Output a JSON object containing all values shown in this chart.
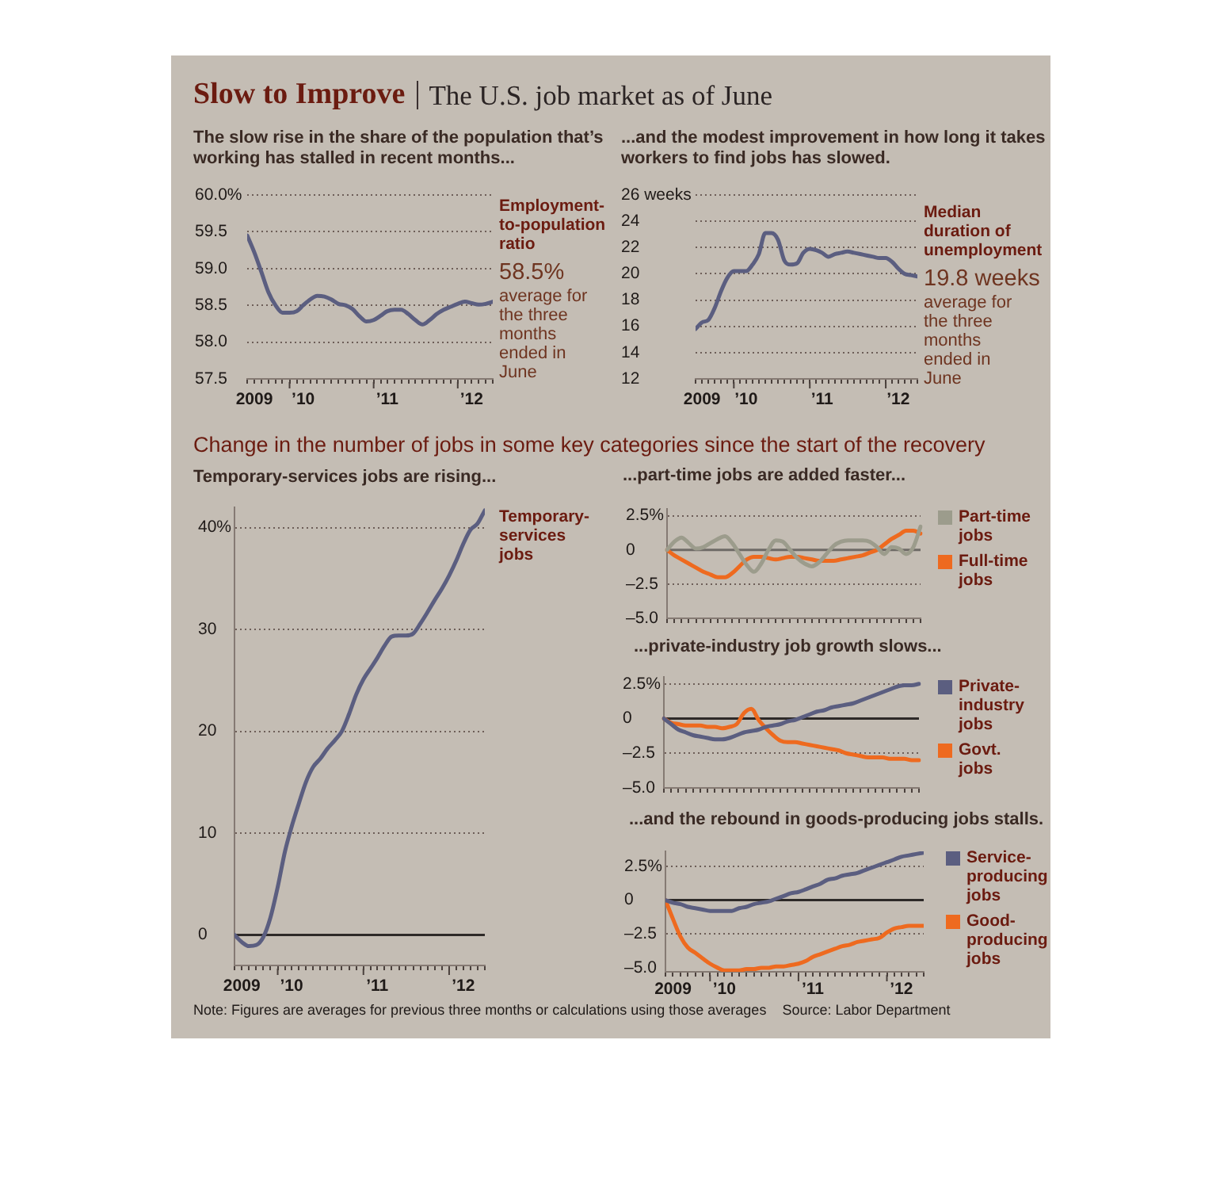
{
  "chart_data": [
    {
      "type": "other",
      "title": "Slow to Improve",
      "subtitle": "The U.S. job market as of June"
    },
    {
      "type": "line",
      "title": "The slow rise in the share of the population that’s working has stalled in recent months...",
      "x": [
        "2009-07",
        "2009-08",
        "2009-09",
        "2009-10",
        "2009-11",
        "2009-12",
        "2010-01",
        "2010-02",
        "2010-03",
        "2010-04",
        "2010-05",
        "2010-06",
        "2010-07",
        "2010-08",
        "2010-09",
        "2010-10",
        "2010-11",
        "2010-12",
        "2011-01",
        "2011-02",
        "2011-03",
        "2011-04",
        "2011-05",
        "2011-06",
        "2011-07",
        "2011-08",
        "2011-09",
        "2011-10",
        "2011-11",
        "2011-12",
        "2012-01",
        "2012-02",
        "2012-03",
        "2012-04",
        "2012-05",
        "2012-06"
      ],
      "series": [
        {
          "name": "Employment-to-population ratio",
          "color": "#5b5e80",
          "values": [
            59.45,
            59.22,
            58.95,
            58.68,
            58.5,
            58.4,
            58.4,
            58.42,
            58.5,
            58.58,
            58.63,
            58.62,
            58.58,
            58.52,
            58.5,
            58.45,
            58.35,
            58.28,
            58.3,
            58.36,
            58.42,
            58.44,
            58.44,
            58.38,
            58.3,
            58.24,
            58.3,
            58.38,
            58.44,
            58.48,
            58.52,
            58.55,
            58.53,
            58.51,
            58.52,
            58.55
          ]
        }
      ],
      "xlim": [
        "2009-07",
        "2012-06"
      ],
      "xticks": [
        {
          "value": "2009-07",
          "label": null
        },
        {
          "value": "2009-08",
          "label": "2009"
        },
        {
          "value": "2009-09",
          "label": null
        },
        {
          "value": "2009-10",
          "label": null
        },
        {
          "value": "2009-11",
          "label": null
        },
        {
          "value": "2009-12",
          "label": null
        },
        {
          "value": "2010-01",
          "label": null
        },
        {
          "value": "2010-02",
          "label": null
        },
        {
          "value": "2010-03",
          "label": "’10"
        },
        {
          "value": "2010-04",
          "label": null
        },
        {
          "value": "2010-05",
          "label": null
        },
        {
          "value": "2010-06",
          "label": null
        },
        {
          "value": "2010-07",
          "label": null
        },
        {
          "value": "2010-08",
          "label": null
        },
        {
          "value": "2010-09",
          "label": null
        },
        {
          "value": "2010-10",
          "label": null
        },
        {
          "value": "2010-11",
          "label": null
        },
        {
          "value": "2010-12",
          "label": null
        },
        {
          "value": "2011-01",
          "label": null
        },
        {
          "value": "2011-02",
          "label": null
        },
        {
          "value": "2011-03",
          "label": "’11"
        },
        {
          "value": "2011-04",
          "label": null
        },
        {
          "value": "2011-05",
          "label": null
        },
        {
          "value": "2011-06",
          "label": null
        },
        {
          "value": "2011-07",
          "label": null
        },
        {
          "value": "2011-08",
          "label": null
        },
        {
          "value": "2011-09",
          "label": null
        },
        {
          "value": "2011-10",
          "label": null
        },
        {
          "value": "2011-11",
          "label": null
        },
        {
          "value": "2011-12",
          "label": null
        },
        {
          "value": "2012-01",
          "label": null
        },
        {
          "value": "2012-02",
          "label": null
        },
        {
          "value": "2012-03",
          "label": "’12"
        },
        {
          "value": "2012-04",
          "label": null
        },
        {
          "value": "2012-05",
          "label": null
        },
        {
          "value": "2012-06",
          "label": null
        }
      ],
      "ylim": [
        57.5,
        60
      ],
      "yticks": [
        57.5,
        {
          "value": 58,
          "label": "58.0"
        },
        58.5,
        {
          "value": 59,
          "label": "59.0"
        },
        59.5,
        {
          "value": 60,
          "label": "60.0%"
        }
      ],
      "grid": "y",
      "legend": false,
      "annotations": [
        "58.5%",
        "average for the three months ended in June"
      ]
    },
    {
      "type": "line",
      "title": "...and the modest improvement in how long it takes workers to find jobs has slowed.",
      "x": [
        "2009-07",
        "2009-08",
        "2009-09",
        "2009-10",
        "2009-11",
        "2009-12",
        "2010-01",
        "2010-02",
        "2010-03",
        "2010-04",
        "2010-05",
        "2010-06",
        "2010-07",
        "2010-08",
        "2010-09",
        "2010-10",
        "2010-11",
        "2010-12",
        "2011-01",
        "2011-02",
        "2011-03",
        "2011-04",
        "2011-05",
        "2011-06",
        "2011-07",
        "2011-08",
        "2011-09",
        "2011-10",
        "2011-11",
        "2011-12",
        "2012-01",
        "2012-02",
        "2012-03",
        "2012-04",
        "2012-05",
        "2012-06"
      ],
      "series": [
        {
          "name": "Median duration of unemployment",
          "color": "#5b5e80",
          "values": [
            15.8,
            16.3,
            16.5,
            17.4,
            18.7,
            19.7,
            20.2,
            20.2,
            20.2,
            20.7,
            21.5,
            23.1,
            23.1,
            22.6,
            21.0,
            20.7,
            20.8,
            21.6,
            21.9,
            21.8,
            21.6,
            21.3,
            21.5,
            21.6,
            21.7,
            21.6,
            21.5,
            21.4,
            21.3,
            21.2,
            21.2,
            20.9,
            20.4,
            20.0,
            19.9,
            19.8
          ]
        }
      ],
      "xlim": [
        "2009-07",
        "2012-06"
      ],
      "xticks": [
        {
          "value": "2009-07",
          "label": null
        },
        {
          "value": "2009-08",
          "label": "2009"
        },
        {
          "value": "2009-09",
          "label": null
        },
        {
          "value": "2009-10",
          "label": null
        },
        {
          "value": "2009-11",
          "label": null
        },
        {
          "value": "2009-12",
          "label": null
        },
        {
          "value": "2010-01",
          "label": null
        },
        {
          "value": "2010-02",
          "label": null
        },
        {
          "value": "2010-03",
          "label": "’10"
        },
        {
          "value": "2010-04",
          "label": null
        },
        {
          "value": "2010-05",
          "label": null
        },
        {
          "value": "2010-06",
          "label": null
        },
        {
          "value": "2010-07",
          "label": null
        },
        {
          "value": "2010-08",
          "label": null
        },
        {
          "value": "2010-09",
          "label": null
        },
        {
          "value": "2010-10",
          "label": null
        },
        {
          "value": "2010-11",
          "label": null
        },
        {
          "value": "2010-12",
          "label": null
        },
        {
          "value": "2011-01",
          "label": null
        },
        {
          "value": "2011-02",
          "label": null
        },
        {
          "value": "2011-03",
          "label": "’11"
        },
        {
          "value": "2011-04",
          "label": null
        },
        {
          "value": "2011-05",
          "label": null
        },
        {
          "value": "2011-06",
          "label": null
        },
        {
          "value": "2011-07",
          "label": null
        },
        {
          "value": "2011-08",
          "label": null
        },
        {
          "value": "2011-09",
          "label": null
        },
        {
          "value": "2011-10",
          "label": null
        },
        {
          "value": "2011-11",
          "label": null
        },
        {
          "value": "2011-12",
          "label": null
        },
        {
          "value": "2012-01",
          "label": null
        },
        {
          "value": "2012-02",
          "label": null
        },
        {
          "value": "2012-03",
          "label": "’12"
        },
        {
          "value": "2012-04",
          "label": null
        },
        {
          "value": "2012-05",
          "label": null
        },
        {
          "value": "2012-06",
          "label": null
        }
      ],
      "ylim": [
        12,
        26
      ],
      "yticks": [
        12,
        14,
        16,
        18,
        20,
        22,
        24,
        {
          "value": 26,
          "label": "26 weeks"
        }
      ],
      "grid": "y",
      "legend": false,
      "annotations": [
        "19.8 weeks",
        "average for the three months ended in June"
      ]
    },
    {
      "type": "other",
      "title": "Change in the number of jobs in some key categories since the start of the recovery"
    },
    {
      "type": "line",
      "title": "Temporary-services jobs are rising...",
      "x": [
        "2009-07",
        "2009-08",
        "2009-09",
        "2009-10",
        "2009-11",
        "2009-12",
        "2010-01",
        "2010-02",
        "2010-03",
        "2010-04",
        "2010-05",
        "2010-06",
        "2010-07",
        "2010-08",
        "2010-09",
        "2010-10",
        "2010-11",
        "2010-12",
        "2011-01",
        "2011-02",
        "2011-03",
        "2011-04",
        "2011-05",
        "2011-06",
        "2011-07",
        "2011-08",
        "2011-09",
        "2011-10",
        "2011-11",
        "2011-12",
        "2012-01",
        "2012-02",
        "2012-03",
        "2012-04",
        "2012-05",
        "2012-06"
      ],
      "series": [
        {
          "name": "Temporary-services jobs",
          "color": "#5b5e80",
          "values": [
            0,
            -0.7,
            -1.1,
            -1.0,
            -0.2,
            1.7,
            4.7,
            8.2,
            10.6,
            12.9,
            15.0,
            16.5,
            17.3,
            18.3,
            19.1,
            20.0,
            21.7,
            23.6,
            25.1,
            26.2,
            27.2,
            28.4,
            29.3,
            29.4,
            29.4,
            29.6,
            30.6,
            31.7,
            32.9,
            34.0,
            35.3,
            36.8,
            38.4,
            39.8,
            40.4,
            41.7
          ]
        }
      ],
      "xlim": [
        "2009-07",
        "2012-06"
      ],
      "xticks": [
        {
          "value": "2009-07",
          "label": null
        },
        {
          "value": "2009-08",
          "label": "2009"
        },
        {
          "value": "2009-09",
          "label": null
        },
        {
          "value": "2009-10",
          "label": null
        },
        {
          "value": "2009-11",
          "label": null
        },
        {
          "value": "2009-12",
          "label": null
        },
        {
          "value": "2010-01",
          "label": null
        },
        {
          "value": "2010-02",
          "label": null
        },
        {
          "value": "2010-03",
          "label": "’10"
        },
        {
          "value": "2010-04",
          "label": null
        },
        {
          "value": "2010-05",
          "label": null
        },
        {
          "value": "2010-06",
          "label": null
        },
        {
          "value": "2010-07",
          "label": null
        },
        {
          "value": "2010-08",
          "label": null
        },
        {
          "value": "2010-09",
          "label": null
        },
        {
          "value": "2010-10",
          "label": null
        },
        {
          "value": "2010-11",
          "label": null
        },
        {
          "value": "2010-12",
          "label": null
        },
        {
          "value": "2011-01",
          "label": null
        },
        {
          "value": "2011-02",
          "label": null
        },
        {
          "value": "2011-03",
          "label": "’11"
        },
        {
          "value": "2011-04",
          "label": null
        },
        {
          "value": "2011-05",
          "label": null
        },
        {
          "value": "2011-06",
          "label": null
        },
        {
          "value": "2011-07",
          "label": null
        },
        {
          "value": "2011-08",
          "label": null
        },
        {
          "value": "2011-09",
          "label": null
        },
        {
          "value": "2011-10",
          "label": null
        },
        {
          "value": "2011-11",
          "label": null
        },
        {
          "value": "2011-12",
          "label": null
        },
        {
          "value": "2012-01",
          "label": null
        },
        {
          "value": "2012-02",
          "label": null
        },
        {
          "value": "2012-03",
          "label": "’12"
        },
        {
          "value": "2012-04",
          "label": null
        },
        {
          "value": "2012-05",
          "label": null
        },
        {
          "value": "2012-06",
          "label": null
        }
      ],
      "ylim": [
        -3,
        42
      ],
      "yticks": [
        0,
        10,
        20,
        30,
        {
          "value": 40,
          "label": "40%"
        }
      ],
      "grid": "y",
      "legend": false,
      "ref_lines": [
        {
          "axis": "y",
          "value": 0,
          "color": "#2e2a28"
        }
      ]
    },
    {
      "type": "line",
      "title": "...part-time jobs are added faster...",
      "categories": [
        null,
        null,
        null,
        null,
        null,
        null,
        null,
        null,
        null,
        null,
        null,
        null,
        null,
        null,
        null,
        null,
        null,
        null,
        null,
        null,
        null,
        null,
        null,
        null,
        null,
        null,
        null,
        null,
        null,
        null,
        null,
        null,
        null,
        null,
        null,
        null
      ],
      "series": [
        {
          "name": "Part-time jobs",
          "color": "#9c9c8c",
          "values": [
            0,
            0.6,
            0.9,
            0.5,
            0.1,
            0.2,
            0.5,
            0.8,
            1.0,
            0.5,
            -0.3,
            -1.1,
            -1.6,
            -1.0,
            0.0,
            0.7,
            0.6,
            0.0,
            -0.6,
            -1.0,
            -1.2,
            -0.9,
            -0.3,
            0.3,
            0.6,
            0.7,
            0.7,
            0.7,
            0.6,
            0.2,
            -0.3,
            0.2,
            0.1,
            -0.3,
            0.2,
            1.7
          ]
        },
        {
          "name": "Full-time jobs",
          "color": "#ee6a1f",
          "values": [
            0,
            -0.4,
            -0.7,
            -1.0,
            -1.3,
            -1.6,
            -1.8,
            -2.0,
            -2.0,
            -1.7,
            -1.2,
            -0.7,
            -0.5,
            -0.5,
            -0.6,
            -0.7,
            -0.6,
            -0.5,
            -0.5,
            -0.6,
            -0.7,
            -0.8,
            -0.8,
            -0.8,
            -0.7,
            -0.6,
            -0.5,
            -0.4,
            -0.2,
            0.0,
            0.4,
            0.8,
            1.1,
            1.4,
            1.4,
            1.2
          ]
        }
      ],
      "ylim": [
        -5,
        3
      ],
      "yticks": [
        {
          "value": -5,
          "label": "–5.0"
        },
        {
          "value": -2.5,
          "label": "–2.5"
        },
        0,
        {
          "value": 2.5,
          "label": "2.5%"
        }
      ],
      "grid": "y",
      "legend": "right",
      "ref_lines": [
        {
          "axis": "y",
          "value": 0,
          "color": "#6e6a66"
        }
      ]
    },
    {
      "type": "line",
      "title": "...private-industry job growth slows...",
      "categories": [
        null,
        null,
        null,
        null,
        null,
        null,
        null,
        null,
        null,
        null,
        null,
        null,
        null,
        null,
        null,
        null,
        null,
        null,
        null,
        null,
        null,
        null,
        null,
        null,
        null,
        null,
        null,
        null,
        null,
        null,
        null,
        null,
        null,
        null,
        null,
        null
      ],
      "series": [
        {
          "name": "Private-industry jobs",
          "color": "#5b5e80",
          "values": [
            0,
            -0.4,
            -0.8,
            -1.0,
            -1.2,
            -1.3,
            -1.4,
            -1.5,
            -1.5,
            -1.4,
            -1.2,
            -1.0,
            -0.9,
            -0.8,
            -0.6,
            -0.5,
            -0.4,
            -0.2,
            -0.1,
            0.1,
            0.3,
            0.5,
            0.6,
            0.8,
            0.9,
            1.0,
            1.1,
            1.3,
            1.5,
            1.7,
            1.9,
            2.1,
            2.3,
            2.4,
            2.4,
            2.5
          ]
        },
        {
          "name": "Govt. jobs",
          "color": "#ee6a1f",
          "values": [
            0,
            -0.3,
            -0.4,
            -0.5,
            -0.5,
            -0.5,
            -0.6,
            -0.6,
            -0.7,
            -0.6,
            -0.4,
            0.4,
            0.7,
            -0.1,
            -0.7,
            -1.2,
            -1.6,
            -1.7,
            -1.7,
            -1.8,
            -1.9,
            -2.0,
            -2.1,
            -2.2,
            -2.3,
            -2.5,
            -2.6,
            -2.7,
            -2.8,
            -2.8,
            -2.8,
            -2.9,
            -2.9,
            -2.9,
            -3.0,
            -3.0
          ]
        }
      ],
      "ylim": [
        -5,
        3
      ],
      "yticks": [
        {
          "value": -5,
          "label": "–5.0"
        },
        {
          "value": -2.5,
          "label": "–2.5"
        },
        0,
        {
          "value": 2.5,
          "label": "2.5%"
        }
      ],
      "grid": "y",
      "legend": "right",
      "ref_lines": [
        {
          "axis": "y",
          "value": 0,
          "color": "#2e2a28"
        }
      ]
    },
    {
      "type": "line",
      "title": "...and the rebound in goods-producing jobs stalls.",
      "x": [
        "2009-07",
        "2009-08",
        "2009-09",
        "2009-10",
        "2009-11",
        "2009-12",
        "2010-01",
        "2010-02",
        "2010-03",
        "2010-04",
        "2010-05",
        "2010-06",
        "2010-07",
        "2010-08",
        "2010-09",
        "2010-10",
        "2010-11",
        "2010-12",
        "2011-01",
        "2011-02",
        "2011-03",
        "2011-04",
        "2011-05",
        "2011-06",
        "2011-07",
        "2011-08",
        "2011-09",
        "2011-10",
        "2011-11",
        "2011-12",
        "2012-01",
        "2012-02",
        "2012-03",
        "2012-04",
        "2012-05",
        "2012-06"
      ],
      "series": [
        {
          "name": "Service-producing jobs",
          "color": "#5b5e80",
          "values": [
            0,
            -0.2,
            -0.3,
            -0.5,
            -0.6,
            -0.7,
            -0.8,
            -0.8,
            -0.8,
            -0.8,
            -0.6,
            -0.5,
            -0.3,
            -0.2,
            -0.1,
            0.1,
            0.3,
            0.5,
            0.6,
            0.8,
            1.0,
            1.2,
            1.5,
            1.6,
            1.8,
            1.9,
            2.0,
            2.2,
            2.4,
            2.6,
            2.8,
            3.0,
            3.2,
            3.3,
            3.4,
            3.5
          ]
        },
        {
          "name": "Good-producing jobs",
          "color": "#ee6a1f",
          "values": [
            0,
            -1.4,
            -2.7,
            -3.5,
            -3.9,
            -4.3,
            -4.7,
            -5.0,
            -5.2,
            -5.2,
            -5.2,
            -5.1,
            -5.1,
            -5.0,
            -5.0,
            -4.9,
            -4.9,
            -4.8,
            -4.7,
            -4.5,
            -4.2,
            -4.0,
            -3.8,
            -3.6,
            -3.4,
            -3.3,
            -3.1,
            -3.0,
            -2.9,
            -2.8,
            -2.4,
            -2.1,
            -2.0,
            -1.9,
            -1.9,
            -1.9
          ]
        }
      ],
      "xlim": [
        "2009-07",
        "2012-06"
      ],
      "xticks": [
        {
          "value": "2009-07",
          "label": null
        },
        {
          "value": "2009-08",
          "label": "2009"
        },
        {
          "value": "2009-09",
          "label": null
        },
        {
          "value": "2009-10",
          "label": null
        },
        {
          "value": "2009-11",
          "label": null
        },
        {
          "value": "2009-12",
          "label": null
        },
        {
          "value": "2010-01",
          "label": null
        },
        {
          "value": "2010-02",
          "label": null
        },
        {
          "value": "2010-03",
          "label": "’10"
        },
        {
          "value": "2010-04",
          "label": null
        },
        {
          "value": "2010-05",
          "label": null
        },
        {
          "value": "2010-06",
          "label": null
        },
        {
          "value": "2010-07",
          "label": null
        },
        {
          "value": "2010-08",
          "label": null
        },
        {
          "value": "2010-09",
          "label": null
        },
        {
          "value": "2010-10",
          "label": null
        },
        {
          "value": "2010-11",
          "label": null
        },
        {
          "value": "2010-12",
          "label": null
        },
        {
          "value": "2011-01",
          "label": null
        },
        {
          "value": "2011-02",
          "label": null
        },
        {
          "value": "2011-03",
          "label": "’11"
        },
        {
          "value": "2011-04",
          "label": null
        },
        {
          "value": "2011-05",
          "label": null
        },
        {
          "value": "2011-06",
          "label": null
        },
        {
          "value": "2011-07",
          "label": null
        },
        {
          "value": "2011-08",
          "label": null
        },
        {
          "value": "2011-09",
          "label": null
        },
        {
          "value": "2011-10",
          "label": null
        },
        {
          "value": "2011-11",
          "label": null
        },
        {
          "value": "2011-12",
          "label": null
        },
        {
          "value": "2012-01",
          "label": null
        },
        {
          "value": "2012-02",
          "label": null
        },
        {
          "value": "2012-03",
          "label": "’12"
        },
        {
          "value": "2012-04",
          "label": null
        },
        {
          "value": "2012-05",
          "label": null
        },
        {
          "value": "2012-06",
          "label": null
        }
      ],
      "ylim": [
        -5.3,
        3.6
      ],
      "yticks": [
        {
          "value": -5,
          "label": "–5.0"
        },
        {
          "value": -2.5,
          "label": "–2.5"
        },
        0,
        {
          "value": 2.5,
          "label": "2.5%"
        }
      ],
      "grid": "y",
      "legend": "right",
      "ref_lines": [
        {
          "axis": "y",
          "value": 0,
          "color": "#2e2a28"
        }
      ]
    },
    {
      "type": "other",
      "annotations": [
        "Note: Figures are averages for previous three months or calculations using those averages",
        "Source: Labor Department"
      ]
    }
  ]
}
